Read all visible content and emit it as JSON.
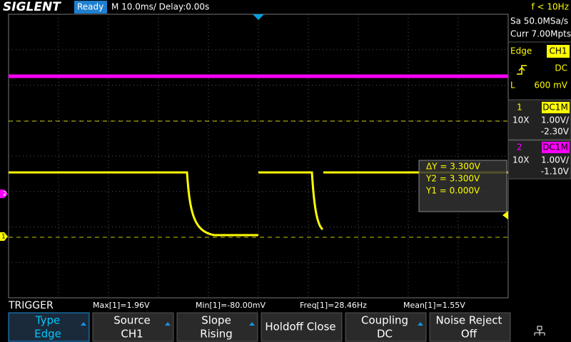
{
  "top_bar": {
    "brand": "SIGLENT",
    "status": "Ready",
    "timebase": "M 10.0ms/ Delay:0.00s",
    "frequency": "f < 10Hz"
  },
  "side_panel": {
    "sample_rate": "Sa 50.0MSa/s",
    "memory": "Curr 7.00Mpts",
    "trigger": {
      "type": "Edge",
      "source": "CH1",
      "coupling": "DC",
      "level_prefix": "L",
      "level": "600 mV"
    },
    "channels": [
      {
        "number": "1",
        "coupling": "DC1M",
        "probe": "10X",
        "scale": "1.00V/",
        "offset": "-2.30V"
      },
      {
        "number": "2",
        "coupling": "DC1M",
        "probe": "10X",
        "scale": "1.00V/",
        "offset": "-1.10V"
      }
    ]
  },
  "markers": {
    "ch1": "1",
    "ch2": "2"
  },
  "cursor_box": {
    "delta": "ΔY = 3.300V",
    "y2": "Y2 = 3.300V",
    "y1": "Y1 = 0.000V"
  },
  "measurements": {
    "menu": "TRIGGER",
    "items": [
      "Max[1]=1.96V",
      "Min[1]=-80.00mV",
      "Freq[1]=28.46Hz",
      "Mean[1]=1.55V"
    ]
  },
  "softkeys": [
    {
      "label": "Type",
      "value": "Edge"
    },
    {
      "label": "Source",
      "value": "CH1"
    },
    {
      "label": "Slope",
      "value": "Rising"
    },
    {
      "label": "Holdoff Close"
    },
    {
      "label": "Coupling",
      "value": "DC"
    },
    {
      "label": "Noise Reject",
      "value": "Off"
    }
  ]
}
